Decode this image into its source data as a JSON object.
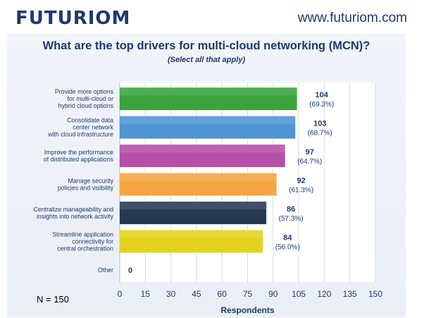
{
  "header": {
    "brand": "FUTURIOM",
    "website": "www.futuriom.com"
  },
  "note": "N = 150",
  "chart_data": {
    "type": "bar",
    "orientation": "horizontal",
    "title": "What are the top drivers for multi-cloud networking (MCN)?",
    "subtitle": "(Select all that apply)",
    "xlabel": "Respondents",
    "ylabel": "",
    "xlim": [
      0,
      150
    ],
    "xticks": [
      0,
      15,
      30,
      45,
      60,
      75,
      90,
      105,
      120,
      135,
      150
    ],
    "grid": true,
    "categories": [
      [
        "Provide more options",
        "for multi-cloud or",
        "hybrid cloud options"
      ],
      [
        "Consolidate data",
        "center network",
        "with cloud infrastructure"
      ],
      [
        "Improve the performance",
        "of distributed applications"
      ],
      [
        "Manage security",
        "policies and visibility"
      ],
      [
        "Centralize manageability and",
        "insights into network activity"
      ],
      [
        "Streamline application",
        "connectivity for",
        "central orchestration"
      ],
      [
        "Other"
      ]
    ],
    "values": [
      104,
      103,
      97,
      92,
      86,
      84,
      0
    ],
    "percent_labels": [
      "(69.3%)",
      "(68.7%)",
      "(64.7%)",
      "(61.3%)",
      "(57.3%)",
      "(56.0%)",
      ""
    ],
    "colors": [
      "#3aa33c",
      "#4f95d6",
      "#b64fa6",
      "#f3a540",
      "#263952",
      "#e3d21b",
      "#cccccc"
    ]
  }
}
